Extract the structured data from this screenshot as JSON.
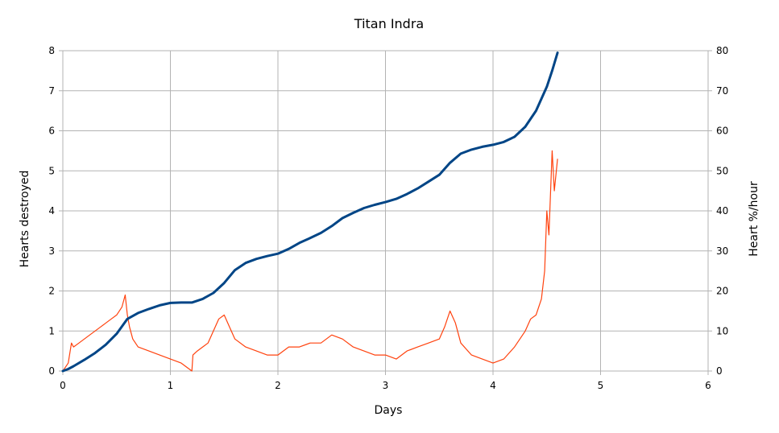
{
  "chart_data": {
    "type": "line",
    "title": "Titan Indra",
    "xlabel": "Days",
    "ylabel_left": "Hearts destroyed",
    "ylabel_right": "Heart %/hour",
    "xlim": [
      0,
      6
    ],
    "ylim_left": [
      0,
      8
    ],
    "ylim_right": [
      0,
      80
    ],
    "x_ticks": [
      "0",
      "1",
      "2",
      "3",
      "4",
      "5",
      "6"
    ],
    "y_left_ticks": [
      "0",
      "1",
      "2",
      "3",
      "4",
      "5",
      "6",
      "7",
      "8"
    ],
    "y_right_ticks": [
      "0",
      "10",
      "20",
      "30",
      "40",
      "50",
      "60",
      "70",
      "80"
    ],
    "grid": true,
    "legend": "none",
    "colors": {
      "hearts": "#004586",
      "rate": "#ff420e",
      "grid": "#b3b3b3",
      "axis": "#b3b3b3"
    },
    "series": [
      {
        "axis": "left",
        "x": [
          0,
          0.05,
          0.1,
          0.2,
          0.3,
          0.4,
          0.5,
          0.6,
          0.7,
          0.8,
          0.9,
          1.0,
          1.1,
          1.2,
          1.3,
          1.4,
          1.5,
          1.6,
          1.7,
          1.8,
          1.9,
          2.0,
          2.1,
          2.2,
          2.3,
          2.4,
          2.5,
          2.6,
          2.7,
          2.8,
          2.9,
          3.0,
          3.1,
          3.2,
          3.3,
          3.4,
          3.5,
          3.6,
          3.7,
          3.8,
          3.9,
          4.0,
          4.1,
          4.2,
          4.3,
          4.4,
          4.5,
          4.55,
          4.6
        ],
        "values": [
          0.0,
          0.05,
          0.12,
          0.28,
          0.45,
          0.66,
          0.93,
          1.3,
          1.45,
          1.55,
          1.64,
          1.7,
          1.71,
          1.71,
          1.8,
          1.95,
          2.2,
          2.52,
          2.7,
          2.8,
          2.87,
          2.93,
          3.05,
          3.2,
          3.32,
          3.45,
          3.62,
          3.82,
          3.95,
          4.07,
          4.15,
          4.22,
          4.3,
          4.42,
          4.56,
          4.73,
          4.9,
          5.2,
          5.43,
          5.53,
          5.6,
          5.65,
          5.72,
          5.85,
          6.1,
          6.5,
          7.1,
          7.5,
          7.95
        ]
      },
      {
        "axis": "right",
        "x": [
          0,
          0.05,
          0.08,
          0.1,
          0.15,
          0.2,
          0.25,
          0.3,
          0.35,
          0.4,
          0.45,
          0.5,
          0.55,
          0.58,
          0.6,
          0.62,
          0.65,
          0.7,
          0.8,
          0.9,
          1.0,
          1.1,
          1.2,
          1.21,
          1.25,
          1.3,
          1.35,
          1.4,
          1.45,
          1.5,
          1.55,
          1.6,
          1.7,
          1.8,
          1.9,
          2.0,
          2.1,
          2.2,
          2.3,
          2.4,
          2.5,
          2.6,
          2.7,
          2.8,
          2.9,
          3.0,
          3.1,
          3.2,
          3.3,
          3.4,
          3.5,
          3.55,
          3.6,
          3.65,
          3.7,
          3.8,
          3.9,
          4.0,
          4.1,
          4.2,
          4.3,
          4.35,
          4.4,
          4.45,
          4.48,
          4.5,
          4.52,
          4.55,
          4.57,
          4.6
        ],
        "values": [
          0,
          2,
          7,
          6,
          7,
          8,
          9,
          10,
          11,
          12,
          13,
          14,
          16,
          19,
          14,
          11,
          8,
          6,
          5,
          4,
          3,
          2,
          0,
          4,
          5,
          6,
          7,
          10,
          13,
          14,
          11,
          8,
          6,
          5,
          4,
          4,
          6,
          6,
          7,
          7,
          9,
          8,
          6,
          5,
          4,
          4,
          3,
          5,
          6,
          7,
          8,
          11,
          15,
          12,
          7,
          4,
          3,
          2,
          3,
          6,
          10,
          13,
          14,
          18,
          25,
          40,
          34,
          55,
          45,
          53
        ]
      }
    ]
  }
}
